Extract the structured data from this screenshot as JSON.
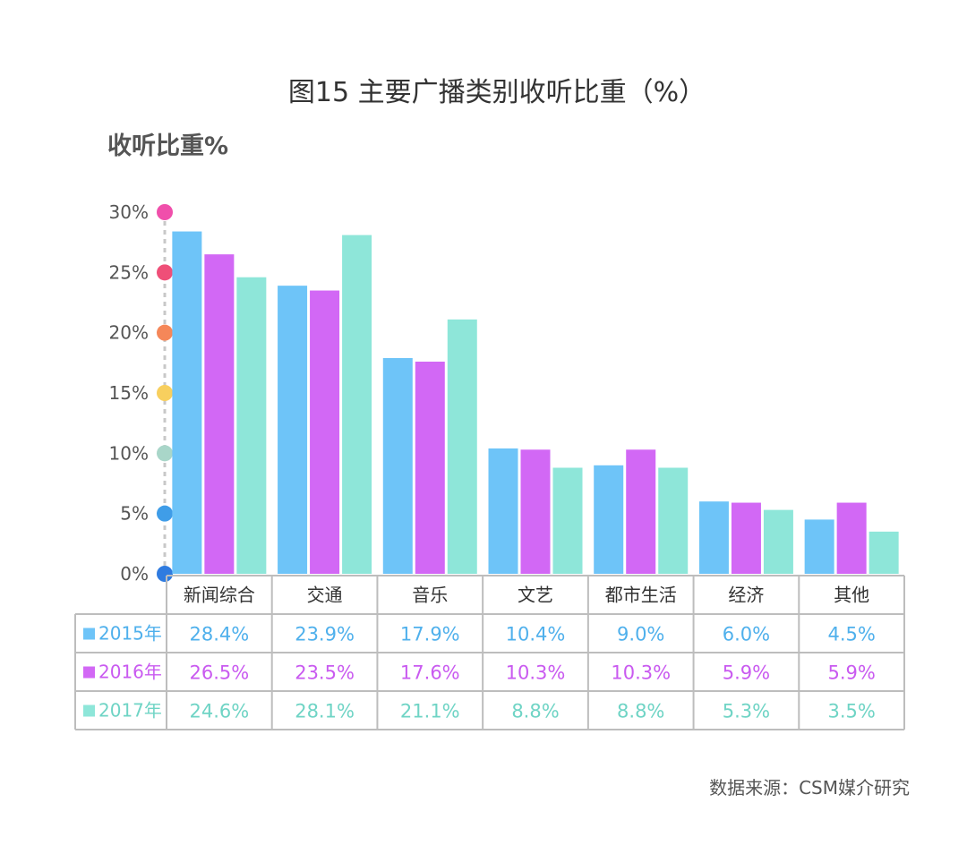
{
  "chart_data": {
    "type": "bar",
    "title": "图15 主要广播类别收听比重（%）",
    "ylabel": "收听比重%",
    "xlabel": "",
    "ylim": [
      0,
      30
    ],
    "yticks": [
      "0%",
      "5%",
      "10%",
      "15%",
      "20%",
      "25%",
      "30%"
    ],
    "tick_dot_colors": [
      "#2f7be0",
      "#3f9de8",
      "#a9d6c9",
      "#f8cf5e",
      "#f58759",
      "#ef4f78",
      "#f04fab"
    ],
    "categories": [
      "新闻综合",
      "交通",
      "音乐",
      "文艺",
      "都市生活",
      "经济",
      "其他"
    ],
    "series": [
      {
        "name": "2015年",
        "color": "#6ec4f8",
        "text_color": "#4fb0ec",
        "values": [
          28.4,
          23.9,
          17.9,
          10.4,
          9.0,
          6.0,
          4.5
        ],
        "labels": [
          "28.4%",
          "23.9%",
          "17.9%",
          "10.4%",
          "9.0%",
          "6.0%",
          "4.5%"
        ]
      },
      {
        "name": "2016年",
        "color": "#d268f5",
        "text_color": "#c95af0",
        "values": [
          26.5,
          23.5,
          17.6,
          10.3,
          10.3,
          5.9,
          5.9
        ],
        "labels": [
          "26.5%",
          "23.5%",
          "17.6%",
          "10.3%",
          "10.3%",
          "5.9%",
          "5.9%"
        ]
      },
      {
        "name": "2017年",
        "color": "#8ee6d9",
        "text_color": "#6fd4c5",
        "values": [
          24.6,
          28.1,
          21.1,
          8.8,
          8.8,
          5.3,
          3.5
        ],
        "labels": [
          "24.6%",
          "28.1%",
          "21.1%",
          "8.8%",
          "8.8%",
          "5.3%",
          "3.5%"
        ]
      }
    ],
    "grid": false,
    "legend": "table-left"
  },
  "source": "数据来源：CSM媒介研究"
}
